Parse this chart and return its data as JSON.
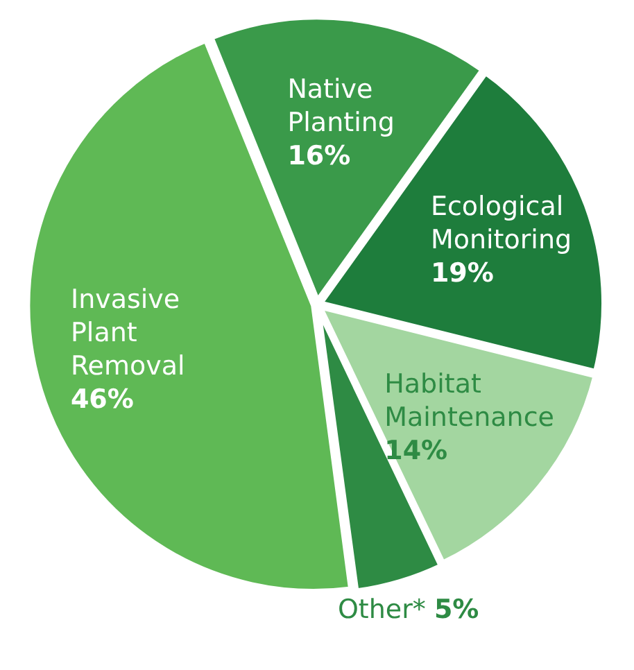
{
  "chart_data": {
    "type": "pie",
    "categories": [
      "Native Planting",
      "Ecological Monitoring",
      "Habitat Maintenance",
      "Other*",
      "Invasive Plant Removal"
    ],
    "values": [
      16,
      19,
      14,
      5,
      46
    ],
    "colors": [
      "#3a9a4a",
      "#1e7d3c",
      "#a3d6a0",
      "#2e8b44",
      "#5fb955"
    ],
    "value_labels": [
      "16%",
      "19%",
      "14%",
      "5%",
      "46%"
    ],
    "legend": false
  }
}
